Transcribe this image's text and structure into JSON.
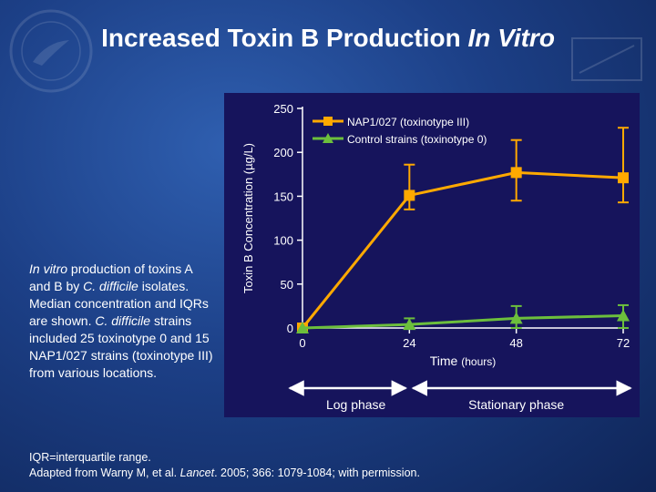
{
  "slide": {
    "title_main": "Increased Toxin B Production ",
    "title_italic": "In Vitro",
    "caption": {
      "p1_italic": "In vitro",
      "p2": " production of toxins A and B by ",
      "p3_italic": "C. difficile",
      "p4": " isolates. Median concentration and IQRs are shown. ",
      "p5_italic": "C. difficile",
      "p6": " strains included 25 toxinotype 0 and 15 NAP1/027 strains (toxinotype III) from various locations."
    },
    "footer": {
      "line1": "IQR=interquartile range.",
      "line2_a": "Adapted from Warny M, et al. ",
      "line2_italic": "Lancet",
      "line2_b": ". 2005; 366: 1079-1084; with permission."
    }
  },
  "colors": {
    "panel_bg": "#16145c",
    "nap1": "#ffa900",
    "control": "#6cbf3c",
    "axis": "#ffffff"
  },
  "chart_data": {
    "type": "line",
    "title": "",
    "xlabel": "Time",
    "xlabel_unit": "(hours)",
    "ylabel": "Toxin B Concentration (µg/L)",
    "x": [
      0,
      24,
      48,
      72
    ],
    "xticks": [
      "0",
      "24",
      "48",
      "72"
    ],
    "yticks": [
      "0",
      "50",
      "100",
      "150",
      "200",
      "250"
    ],
    "ylim": [
      0,
      250
    ],
    "xlim": [
      0,
      72
    ],
    "legend_position": "top-left",
    "series": [
      {
        "name": "NAP1/027 (toxinotype III)",
        "marker": "square",
        "values": [
          0,
          151,
          177,
          171
        ],
        "iqr_low": [
          0,
          135,
          145,
          143
        ],
        "iqr_high": [
          0,
          186,
          214,
          228
        ]
      },
      {
        "name": "Control strains (toxinotype 0)",
        "marker": "triangle",
        "values": [
          0,
          4,
          11,
          14
        ],
        "iqr_low": [
          0,
          0,
          0,
          0
        ],
        "iqr_high": [
          0,
          11,
          25,
          26
        ]
      }
    ],
    "phases": [
      {
        "label": "Log phase",
        "x_start": 0,
        "x_end": 24
      },
      {
        "label": "Stationary phase",
        "x_start": 24,
        "x_end": 72
      }
    ]
  }
}
